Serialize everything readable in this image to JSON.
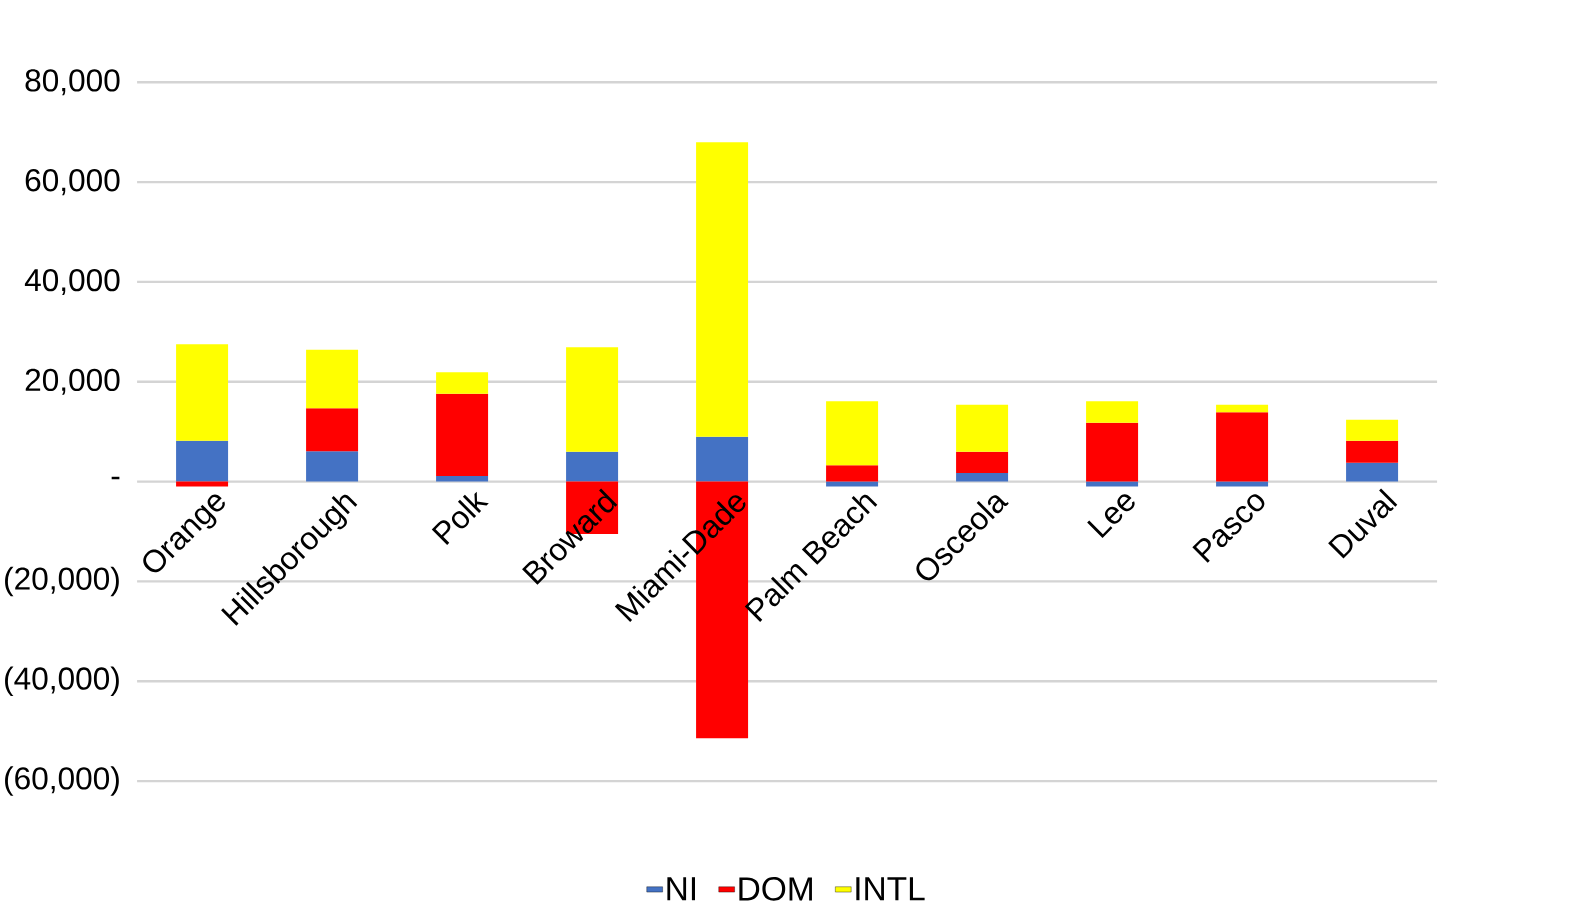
{
  "chart_data": {
    "type": "bar",
    "stacked": true,
    "categories": [
      "Orange",
      "Hillsborough",
      "Polk",
      "Broward",
      "Miami-Dade",
      "Palm Beach",
      "Osceola",
      "Lee",
      "Pasco",
      "Duval"
    ],
    "series": [
      {
        "name": "NI",
        "color": "#4472c4",
        "values": [
          8200,
          6100,
          1100,
          6000,
          9000,
          -1000,
          1700,
          -1000,
          -1000,
          3800
        ]
      },
      {
        "name": "DOM",
        "color": "#ff0000",
        "values": [
          -1000,
          8600,
          16500,
          -10500,
          -51400,
          3300,
          4300,
          11800,
          13900,
          4400
        ]
      },
      {
        "name": "INTL",
        "color": "#ffff00",
        "values": [
          19300,
          11700,
          4300,
          20900,
          59000,
          12800,
          9400,
          4300,
          1500,
          4200
        ]
      }
    ],
    "ylim": [
      -60000,
      80000
    ],
    "yticks": [
      {
        "value": -60000,
        "label": "(60,000)"
      },
      {
        "value": -40000,
        "label": "(40,000)"
      },
      {
        "value": -20000,
        "label": "(20,000)"
      },
      {
        "value": 0,
        "label": "-"
      },
      {
        "value": 20000,
        "label": "20,000"
      },
      {
        "value": 40000,
        "label": "40,000"
      },
      {
        "value": 60000,
        "label": "60,000"
      },
      {
        "value": 80000,
        "label": "80,000"
      }
    ],
    "grid": "y",
    "legend": "bottom"
  }
}
